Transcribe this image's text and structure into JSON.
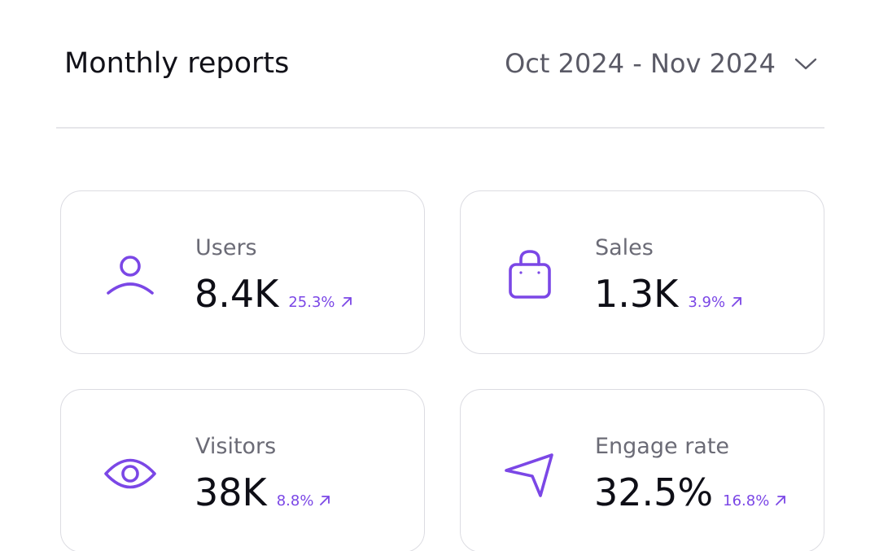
{
  "header": {
    "title": "Monthly reports",
    "date_range": "Oct 2024 - Nov 2024"
  },
  "colors": {
    "accent": "#7B47E6",
    "text_primary": "#0E0E16",
    "text_secondary": "#6B6B76",
    "border": "#DCDCE2"
  },
  "cards": {
    "users": {
      "icon": "user-icon",
      "label": "Users",
      "value": "8.4K",
      "change": "25.3%",
      "trend": "up"
    },
    "sales": {
      "icon": "shopping-bag-icon",
      "label": "Sales",
      "value": "1.3K",
      "change": "3.9%",
      "trend": "up"
    },
    "visitors": {
      "icon": "eye-icon",
      "label": "Visitors",
      "value": "38K",
      "change": "8.8%",
      "trend": "up"
    },
    "engage": {
      "icon": "navigation-arrow-icon",
      "label": "Engage rate",
      "value": "32.5%",
      "change": "16.8%",
      "trend": "up"
    }
  }
}
